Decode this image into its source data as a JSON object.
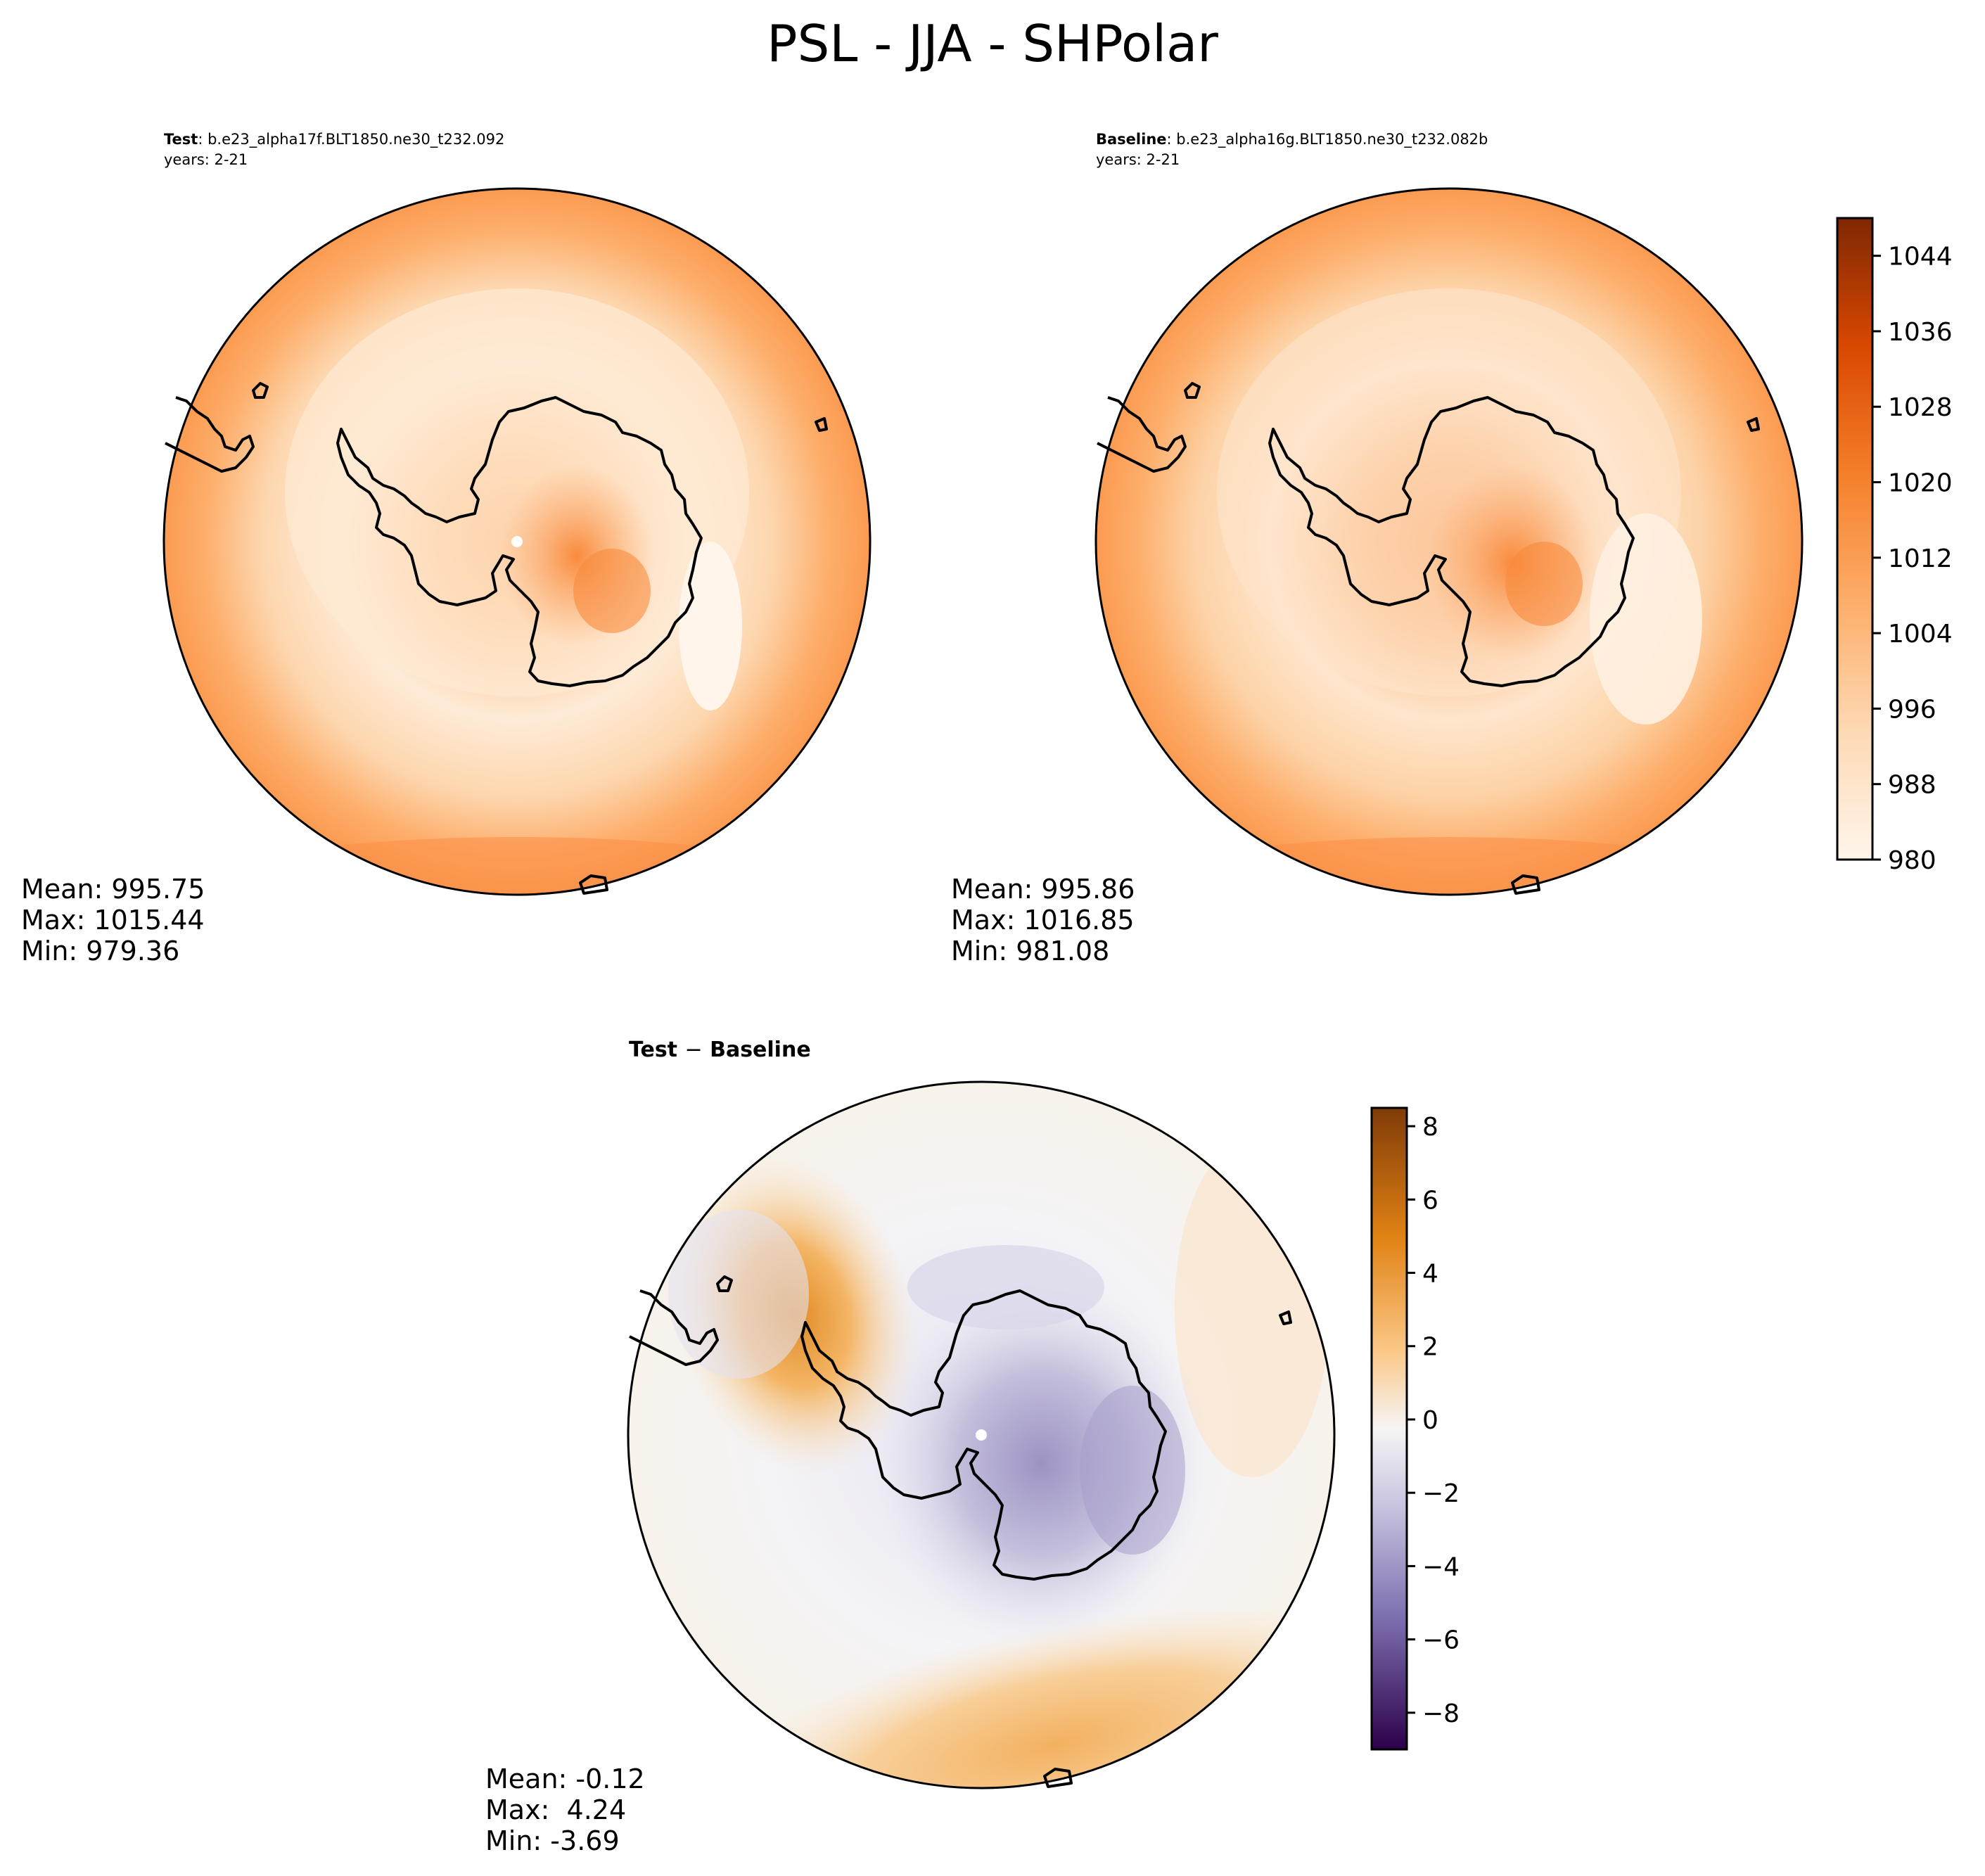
{
  "figure": {
    "title": "PSL - JJA - SHPolar"
  },
  "panels": {
    "test": {
      "label": "Test",
      "case": ": b.e23_alpha17f.BLT1850.ne30_t232.092",
      "years": "years: 2-21",
      "mean": "Mean: 995.75",
      "max": "Max: 1015.44",
      "min": "Min: 979.36"
    },
    "baseline": {
      "label": "Baseline",
      "case": ": b.e23_alpha16g.BLT1850.ne30_t232.082b",
      "years": "years: 2-21",
      "mean": "Mean: 995.86",
      "max": "Max: 1016.85",
      "min": "Min: 981.08"
    },
    "diff": {
      "label_a": "Test",
      "label_sep": "−",
      "label_b": "Baseline",
      "mean": "Mean: -0.12",
      "max": "Max:  4.24",
      "min": "Min: -3.69"
    }
  },
  "colors": {
    "coastline": "#000000",
    "seq_low": "#fff5eb",
    "seq_high": "#7f2704",
    "div_low": "#2d004b",
    "div_mid": "#f7f7f7",
    "div_high": "#7f3b08"
  },
  "chart_data": [
    {
      "type": "contourf",
      "name": "Test",
      "projection": "south-polar-stereographic",
      "variable": "PSL",
      "season": "JJA",
      "mean": 995.75,
      "max": 1015.44,
      "min": 979.36
    },
    {
      "type": "contourf",
      "name": "Baseline",
      "projection": "south-polar-stereographic",
      "variable": "PSL",
      "season": "JJA",
      "mean": 995.86,
      "max": 1016.85,
      "min": 981.08,
      "colorbar": {
        "cmap": "Oranges",
        "range": [
          980,
          1048
        ],
        "levels_step": 4,
        "ticks": [
          980,
          988,
          996,
          1004,
          1012,
          1020,
          1028,
          1036,
          1044
        ],
        "tick_labels": [
          "980",
          "988",
          "996",
          "1004",
          "1012",
          "1020",
          "1028",
          "1036",
          "1044"
        ]
      }
    },
    {
      "type": "contourf",
      "name": "Test - Baseline",
      "projection": "south-polar-stereographic",
      "variable": "PSL difference",
      "mean": -0.12,
      "max": 4.24,
      "min": -3.69,
      "colorbar": {
        "cmap": "PuOr_r",
        "range": [
          -9,
          8.5
        ],
        "ticks": [
          -8,
          -6,
          -4,
          -2,
          0,
          2,
          4,
          6,
          8
        ],
        "tick_labels": [
          "−8",
          "−6",
          "−4",
          "−2",
          "0",
          "2",
          "4",
          "6",
          "8"
        ]
      }
    }
  ]
}
